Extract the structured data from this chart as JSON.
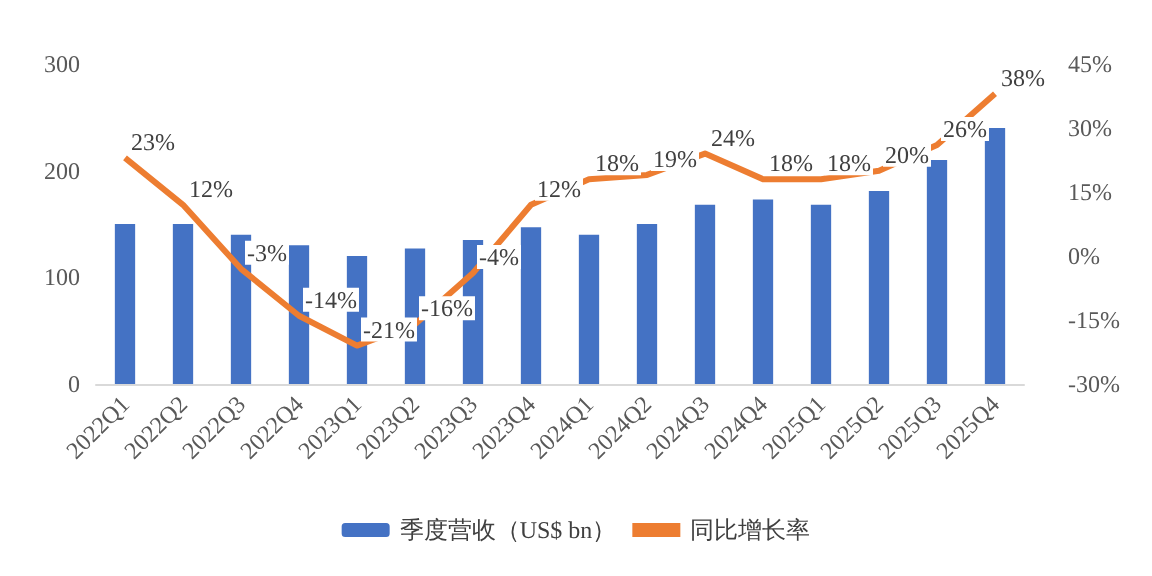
{
  "chart_data": {
    "type": "bar",
    "categories": [
      "2022Q1",
      "2022Q2",
      "2022Q3",
      "2022Q4",
      "2023Q1",
      "2023Q2",
      "2023Q3",
      "2023Q4",
      "2024Q1",
      "2024Q2",
      "2024Q3",
      "2024Q4",
      "2025Q1",
      "2025Q2",
      "2025Q3",
      "2025Q4"
    ],
    "series": [
      {
        "name": "季度营收（US$ bn）",
        "color": "#4472c4",
        "values": [
          150,
          150,
          140,
          130,
          120,
          127,
          135,
          147,
          140,
          150,
          168,
          173,
          168,
          181,
          210,
          240
        ]
      },
      {
        "name": "同比增长率",
        "type": "line",
        "axis": "y2",
        "color": "#ed7d31",
        "marker": "none",
        "data_labels": true,
        "values": [
          23,
          12,
          -3,
          -14,
          -21,
          -16,
          -4,
          12,
          18,
          19,
          24,
          18,
          18,
          20,
          26,
          38
        ],
        "value_labels": [
          "23%",
          "12%",
          "-3%",
          "-14%",
          "-21%",
          "-16%",
          "-4%",
          "12%",
          "18%",
          "19%",
          "24%",
          "18%",
          "18%",
          "20%",
          "26%",
          "38%"
        ]
      }
    ],
    "ylim": [
      0,
      300
    ],
    "yticks": [
      0,
      100,
      200,
      300
    ],
    "y2lim": [
      -30,
      45
    ],
    "y2ticks": [
      {
        "value": -30,
        "label": "-30%"
      },
      {
        "value": -15,
        "label": "-15%"
      },
      {
        "value": 0,
        "label": "0%"
      },
      {
        "value": 15,
        "label": "15%"
      },
      {
        "value": 30,
        "label": "30%"
      },
      {
        "value": 45,
        "label": "45%"
      }
    ],
    "grid": false,
    "legend": "bottom"
  }
}
